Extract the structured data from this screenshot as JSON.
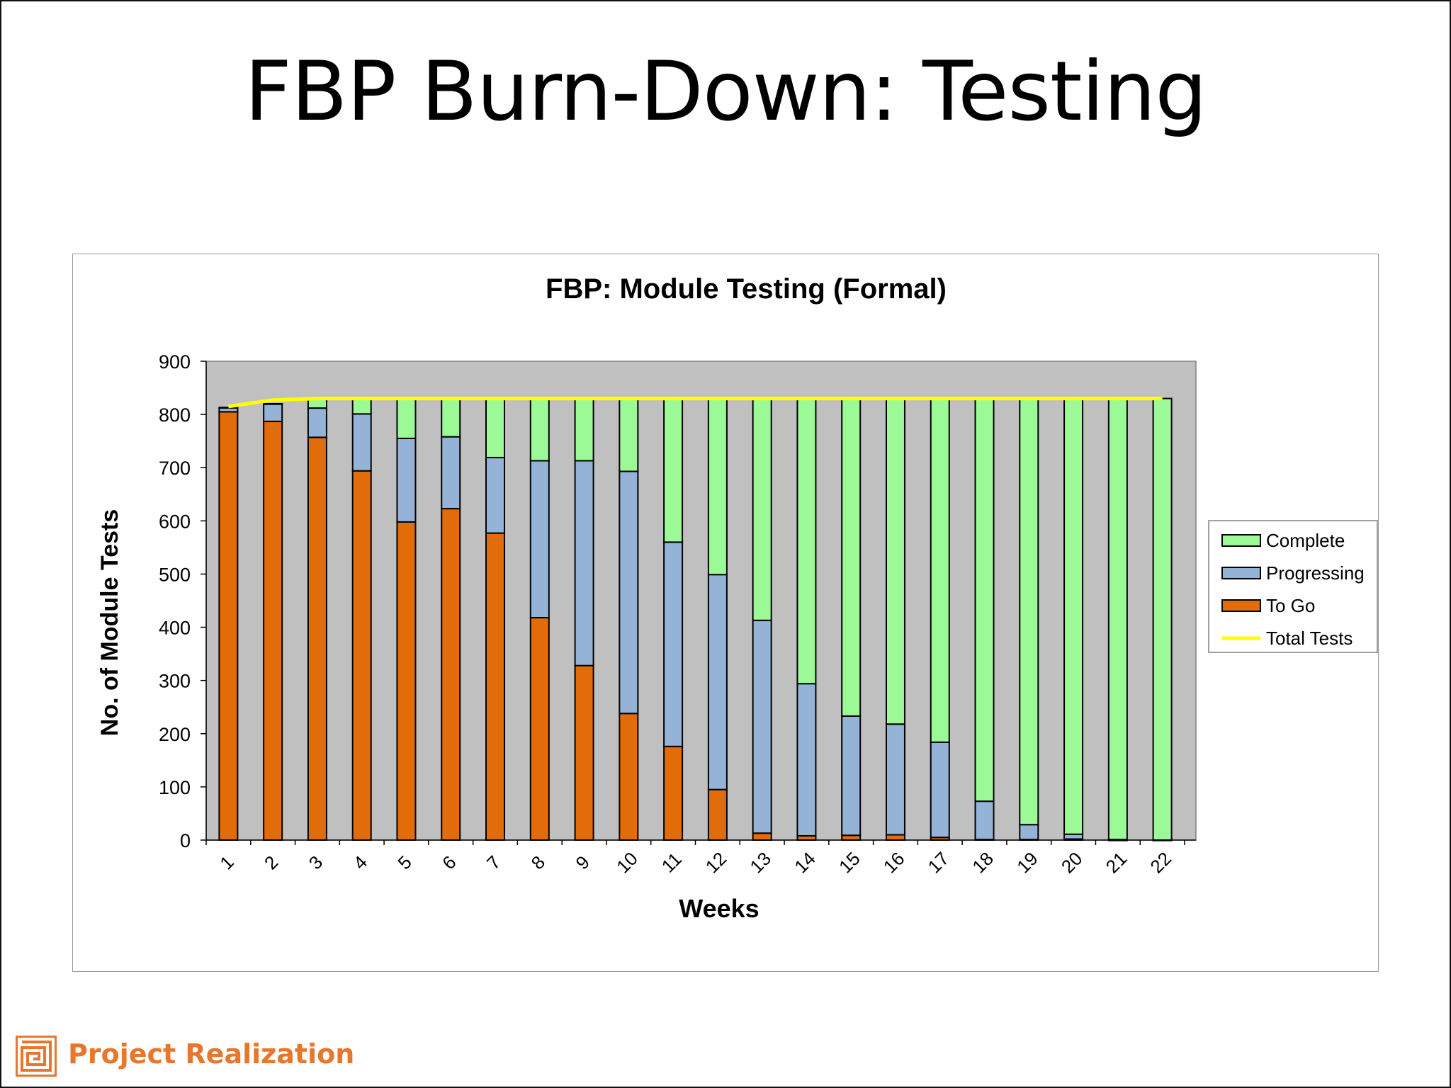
{
  "slide": {
    "title": "FBP Burn-Down: Testing"
  },
  "footer": {
    "brand": "Project Realization",
    "logo_icon": "maze-icon",
    "brand_color": "#e8772e"
  },
  "colors": {
    "to_go": "#e36c0a",
    "progressing": "#95b3d7",
    "complete": "#9bfa96",
    "total_line": "#ffff00",
    "plot_bg": "#c0c0c0"
  },
  "chart_data": {
    "type": "bar",
    "stacked": true,
    "title": "FBP: Module Testing (Formal)",
    "xlabel": "Weeks",
    "ylabel": "No. of Module Tests",
    "ylim": [
      0,
      900
    ],
    "yticks": [
      "0",
      "100",
      "200",
      "300",
      "400",
      "500",
      "600",
      "700",
      "800",
      "900"
    ],
    "categories": [
      "1",
      "2",
      "3",
      "4",
      "5",
      "6",
      "7",
      "8",
      "9",
      "10",
      "11",
      "12",
      "13",
      "14",
      "15",
      "16",
      "17",
      "18",
      "19",
      "20",
      "21",
      "22"
    ],
    "series": [
      {
        "name": "To Go",
        "values": [
          805,
          787,
          757,
          694,
          598,
          623,
          577,
          418,
          328,
          238,
          176,
          95,
          13,
          8,
          9,
          10,
          5,
          1,
          1,
          2,
          0,
          0
        ]
      },
      {
        "name": "Progressing",
        "values": [
          8,
          33,
          55,
          107,
          157,
          135,
          142,
          295,
          385,
          455,
          384,
          404,
          400,
          286,
          224,
          208,
          179,
          72,
          28,
          9,
          1,
          0
        ]
      },
      {
        "name": "Complete",
        "values": [
          0,
          0,
          18,
          29,
          75,
          72,
          111,
          117,
          117,
          137,
          270,
          331,
          417,
          536,
          597,
          612,
          646,
          757,
          801,
          819,
          829,
          830
        ]
      }
    ],
    "line": {
      "name": "Total Tests",
      "values": [
        815,
        827,
        830,
        830,
        830,
        830,
        830,
        830,
        830,
        830,
        830,
        830,
        830,
        830,
        830,
        830,
        830,
        830,
        830,
        830,
        830,
        830
      ]
    },
    "legend": {
      "position": "right",
      "entries": [
        "Complete",
        "Progressing",
        "To Go",
        "Total Tests"
      ]
    },
    "grid": false
  }
}
